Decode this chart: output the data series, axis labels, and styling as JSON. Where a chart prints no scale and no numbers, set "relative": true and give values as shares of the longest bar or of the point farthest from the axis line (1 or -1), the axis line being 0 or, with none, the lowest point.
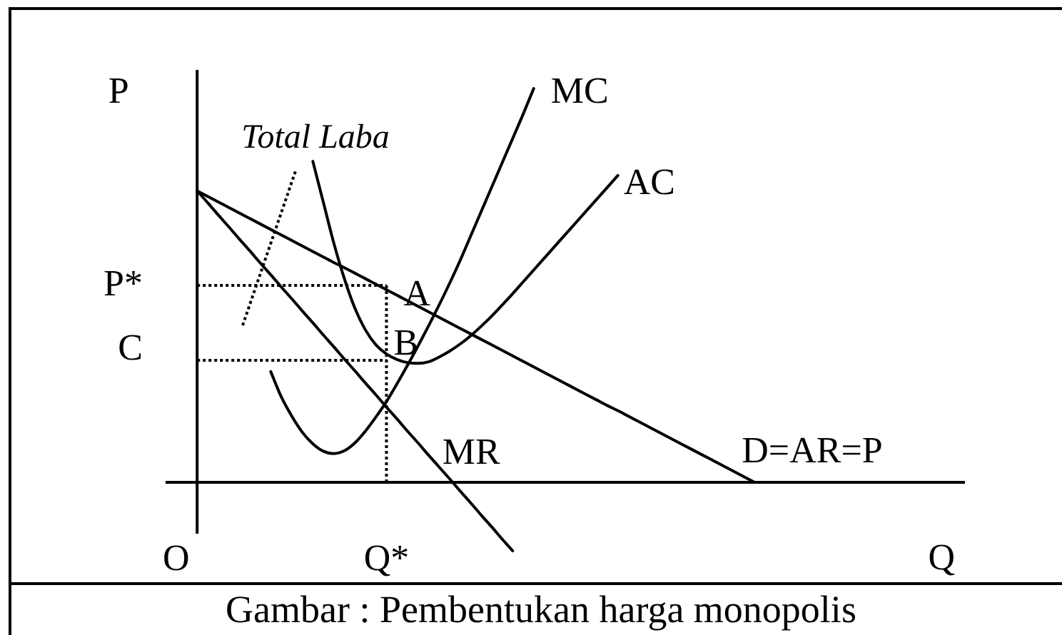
{
  "chart_data": {
    "type": "line",
    "relative": true,
    "xlabel": "Q",
    "ylabel": "P",
    "categories": [
      null,
      "O",
      null,
      null,
      null,
      null,
      null,
      null,
      null,
      null,
      null,
      null,
      null,
      null,
      null,
      null,
      null,
      null,
      null,
      null,
      null,
      "Q*",
      null,
      null,
      null,
      null,
      null,
      null,
      null,
      null,
      null,
      null,
      null,
      null,
      null,
      null,
      null,
      null,
      null,
      null,
      null,
      null,
      null,
      null,
      null,
      null,
      null,
      null,
      null,
      null,
      null,
      null,
      null,
      null,
      null,
      null,
      null,
      null,
      null,
      null,
      null,
      null,
      null,
      null,
      null,
      null,
      null,
      null,
      null,
      null,
      null,
      null,
      null,
      null,
      null,
      null,
      null
    ],
    "series": [
      {
        "name": "D=AR=P",
        "color": "#000000",
        "values": [
          null,
          null,
          null,
          0.74,
          0.726,
          0.712,
          0.698,
          0.684,
          0.67,
          0.656,
          0.642,
          0.628,
          0.614,
          0.6,
          0.586,
          0.572,
          0.558,
          0.545,
          0.531,
          0.517,
          0.503,
          0.489,
          0.475,
          0.461,
          0.447,
          0.433,
          0.419,
          0.405,
          0.391,
          0.377,
          0.363,
          0.349,
          0.335,
          0.321,
          0.307,
          0.293,
          0.279,
          0.265,
          0.251,
          0.237,
          0.223,
          0.209,
          0.195,
          0.182,
          0.168,
          0.154,
          0.14,
          0.126,
          0.112,
          0.098,
          0.084,
          0.07,
          0.056,
          0.042,
          0.028,
          0.014,
          0,
          null,
          null,
          null,
          null,
          null,
          null,
          null,
          null,
          null,
          null,
          null,
          null,
          null,
          null,
          null,
          null,
          null,
          null,
          null,
          null
        ]
      },
      {
        "name": "MR",
        "color": "#000000",
        "values": [
          null,
          null,
          null,
          0.74,
          0.71,
          0.679,
          0.649,
          0.618,
          0.588,
          0.557,
          0.527,
          0.496,
          0.466,
          0.435,
          0.405,
          0.374,
          0.344,
          0.313,
          0.283,
          0.252,
          0.222,
          0.191,
          0.161,
          0.13,
          0.1,
          0.069,
          0.039,
          0.009,
          -0.022,
          -0.052,
          -0.083,
          -0.113,
          -0.144,
          -0.174,
          null,
          null,
          null,
          null,
          null,
          null,
          null,
          null,
          null,
          null,
          null,
          null,
          null,
          null,
          null,
          null,
          null,
          null,
          null,
          null,
          null,
          null,
          null,
          null,
          null,
          null,
          null,
          null,
          null,
          null,
          null,
          null,
          null,
          null,
          null,
          null,
          null,
          null,
          null,
          null,
          null,
          null,
          null
        ]
      },
      {
        "name": "MC",
        "color": "#000000",
        "values": [
          null,
          null,
          null,
          null,
          null,
          null,
          null,
          null,
          null,
          null,
          0.281,
          0.217,
          0.168,
          0.127,
          0.098,
          0.079,
          0.073,
          0.08,
          0.1,
          0.13,
          0.166,
          0.205,
          0.25,
          0.297,
          0.346,
          0.397,
          0.45,
          0.505,
          0.563,
          0.625,
          0.687,
          0.749,
          0.811,
          0.873,
          0.935,
          1,
          null,
          null,
          null,
          null,
          null,
          null,
          null,
          null,
          null,
          null,
          null,
          null,
          null,
          null,
          null,
          null,
          null,
          null,
          null,
          null,
          null,
          null,
          null,
          null,
          null,
          null,
          null,
          null,
          null,
          null,
          null,
          null,
          null,
          null,
          null,
          null,
          null,
          null,
          null,
          null,
          null
        ]
      },
      {
        "name": "AC",
        "color": "#000000",
        "values": [
          null,
          null,
          null,
          null,
          null,
          null,
          null,
          null,
          null,
          null,
          null,
          null,
          null,
          null,
          0.815,
          0.711,
          0.607,
          0.517,
          0.442,
          0.387,
          0.349,
          0.326,
          0.312,
          0.304,
          0.302,
          0.306,
          0.318,
          0.333,
          0.351,
          0.372,
          0.396,
          0.422,
          0.45,
          0.479,
          0.509,
          0.539,
          0.569,
          0.599,
          0.629,
          0.659,
          0.689,
          0.719,
          0.749,
          0.779,
          null,
          null,
          null,
          null,
          null,
          null,
          null,
          null,
          null,
          null,
          null,
          null,
          null,
          null,
          null,
          null,
          null,
          null,
          null,
          null,
          null,
          null,
          null,
          null,
          null,
          null,
          null,
          null,
          null,
          null,
          null,
          null,
          null
        ]
      },
      {
        "color": "#000000",
        "line_style": "dotted",
        "values": [
          null,
          null,
          null,
          0.5,
          0.5,
          0.5,
          0.5,
          0.5,
          0.5,
          0.5,
          0.5,
          0.5,
          0.5,
          0.5,
          0.5,
          0.5,
          0.5,
          0.5,
          0.5,
          0.5,
          0.5,
          0.5,
          null,
          null,
          null,
          null,
          null,
          null,
          null,
          null,
          null,
          null,
          null,
          null,
          null,
          null,
          null,
          null,
          null,
          null,
          null,
          null,
          null,
          null,
          null,
          null,
          null,
          null,
          null,
          null,
          null,
          null,
          null,
          null,
          null,
          null,
          null,
          null,
          null,
          null,
          null,
          null,
          null,
          null,
          null,
          null,
          null,
          null,
          null,
          null,
          null,
          null,
          null,
          null,
          null,
          null,
          null
        ]
      },
      {
        "color": "#000000",
        "line_style": "dotted",
        "values": [
          null,
          null,
          null,
          0.31,
          0.31,
          0.31,
          0.31,
          0.31,
          0.31,
          0.31,
          0.31,
          0.31,
          0.31,
          0.31,
          0.31,
          0.31,
          0.31,
          0.31,
          0.31,
          0.31,
          0.31,
          0.31,
          null,
          null,
          null,
          null,
          null,
          null,
          null,
          null,
          null,
          null,
          null,
          null,
          null,
          null,
          null,
          null,
          null,
          null,
          null,
          null,
          null,
          null,
          null,
          null,
          null,
          null,
          null,
          null,
          null,
          null,
          null,
          null,
          null,
          null,
          null,
          null,
          null,
          null,
          null,
          null,
          null,
          null,
          null,
          null,
          null,
          null,
          null,
          null,
          null,
          null,
          null,
          null,
          null,
          null,
          null
        ]
      },
      {
        "color": "#000000",
        "line_style": "dotted",
        "x": [
          "Q*",
          "Q*"
        ],
        "values": [
          0.5,
          0
        ]
      }
    ],
    "annotations": [
      "Total Laba",
      "P*",
      "C",
      {
        "text": "A",
        "x": "Q*",
        "y": 0.5
      },
      {
        "text": "B",
        "x": "Q*",
        "y": 0.31
      },
      "Gambar : Pembentukan harga monopolis"
    ]
  }
}
